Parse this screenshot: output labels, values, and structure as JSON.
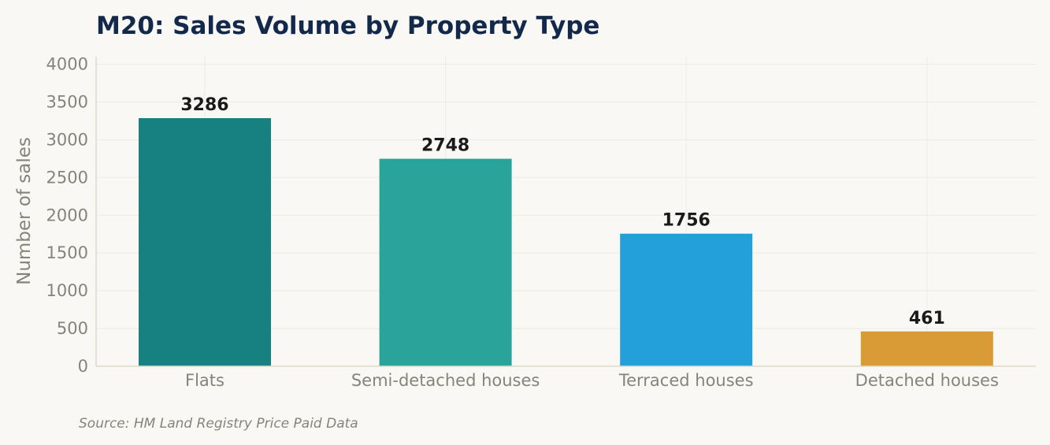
{
  "chart_data": {
    "type": "bar",
    "title": "M20: Sales Volume by Property Type",
    "xlabel": "",
    "ylabel": "Number of sales",
    "categories": [
      "Flats",
      "Semi-detached houses",
      "Terraced houses",
      "Detached houses"
    ],
    "values": [
      3286,
      2748,
      1756,
      461
    ],
    "colors": [
      "#168180",
      "#2aa39a",
      "#239fd9",
      "#d89b35"
    ],
    "ylim": [
      0,
      4100
    ],
    "yticks": [
      0,
      500,
      1000,
      1500,
      2000,
      2500,
      3000,
      3500,
      4000
    ],
    "grid": true,
    "legend": "none",
    "source": "Source: HM Land Registry Price Paid Data"
  }
}
